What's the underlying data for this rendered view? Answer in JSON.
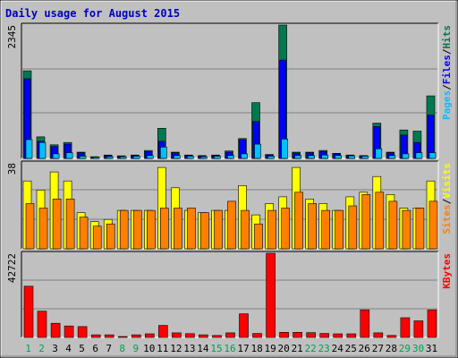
{
  "title": "Daily usage for August 2015",
  "colors": {
    "frame_bg": "#c0c0c0",
    "plot_bg": "#c0c0c0",
    "title": "#0000c0",
    "hits": "#007850",
    "files": "#0000ff",
    "pages": "#00c0ff",
    "visits": "#ffff00",
    "sites": "#ff8000",
    "kbytes": "#ff0000",
    "day_normal": "#000000",
    "day_weekend": "#00a050"
  },
  "chart_data": [
    {
      "type": "bar",
      "panel": "hits-files-pages",
      "ymax_label": "2345",
      "ymax": 2345,
      "legend": [
        "Pages",
        "/",
        "Files",
        "/",
        "Hits"
      ],
      "categories": [
        "1",
        "2",
        "3",
        "4",
        "5",
        "6",
        "7",
        "8",
        "9",
        "10",
        "11",
        "12",
        "13",
        "14",
        "15",
        "16",
        "17",
        "18",
        "19",
        "20",
        "21",
        "22",
        "23",
        "24",
        "25",
        "26",
        "27",
        "28",
        "29",
        "30",
        "31"
      ],
      "weekend_days": [
        "1",
        "2",
        "8",
        "9",
        "15",
        "16",
        "22",
        "23",
        "29",
        "30"
      ],
      "series": [
        {
          "name": "Hits",
          "values": [
            1540,
            380,
            240,
            280,
            110,
            30,
            60,
            45,
            60,
            140,
            530,
            110,
            60,
            50,
            60,
            130,
            350,
            980,
            70,
            2345,
            110,
            110,
            140,
            90,
            60,
            50,
            620,
            110,
            500,
            480,
            1100
          ]
        },
        {
          "name": "Files",
          "values": [
            1400,
            300,
            210,
            250,
            100,
            25,
            50,
            40,
            50,
            120,
            300,
            100,
            50,
            45,
            50,
            110,
            330,
            650,
            60,
            1730,
            95,
            100,
            120,
            80,
            55,
            45,
            560,
            100,
            410,
            280,
            760
          ]
        },
        {
          "name": "Pages",
          "values": [
            330,
            280,
            80,
            100,
            40,
            20,
            30,
            30,
            40,
            50,
            200,
            50,
            40,
            30,
            40,
            50,
            80,
            250,
            40,
            340,
            50,
            50,
            60,
            50,
            45,
            40,
            170,
            50,
            80,
            100,
            100
          ]
        }
      ]
    },
    {
      "type": "bar",
      "panel": "visits-sites",
      "ymax_label": "38",
      "ymax": 38,
      "legend": [
        "Sites",
        "/",
        "Visits"
      ],
      "categories": [
        "1",
        "2",
        "3",
        "4",
        "5",
        "6",
        "7",
        "8",
        "9",
        "10",
        "11",
        "12",
        "13",
        "14",
        "15",
        "16",
        "17",
        "18",
        "19",
        "20",
        "21",
        "22",
        "23",
        "24",
        "25",
        "26",
        "27",
        "28",
        "29",
        "30",
        "31"
      ],
      "series": [
        {
          "name": "Visits",
          "values": [
            30,
            26,
            34,
            30,
            16,
            12,
            13,
            17,
            17,
            17,
            36,
            27,
            17,
            16,
            17,
            17,
            28,
            15,
            20,
            23,
            36,
            22,
            20,
            17,
            23,
            25,
            32,
            24,
            18,
            18,
            30
          ]
        },
        {
          "name": "Sites",
          "values": [
            20,
            18,
            22,
            22,
            14,
            10,
            11,
            17,
            17,
            17,
            18,
            18,
            18,
            16,
            17,
            21,
            17,
            11,
            17,
            18,
            25,
            20,
            17,
            17,
            19,
            24,
            25,
            21,
            17,
            18,
            21
          ]
        }
      ]
    },
    {
      "type": "bar",
      "panel": "kbytes",
      "ymax_label": "42722",
      "ymax": 42722,
      "legend": [
        "KBytes"
      ],
      "categories": [
        "1",
        "2",
        "3",
        "4",
        "5",
        "6",
        "7",
        "8",
        "9",
        "10",
        "11",
        "12",
        "13",
        "14",
        "15",
        "16",
        "17",
        "18",
        "19",
        "20",
        "21",
        "22",
        "23",
        "24",
        "25",
        "26",
        "27",
        "28",
        "29",
        "30",
        "31"
      ],
      "series": [
        {
          "name": "KBytes",
          "values": [
            26000,
            13300,
            7200,
            5800,
            5500,
            1300,
            1300,
            400,
            1300,
            1800,
            6100,
            2300,
            1900,
            1300,
            1000,
            2300,
            12000,
            2000,
            42722,
            2600,
            2600,
            2400,
            2000,
            1800,
            1800,
            14000,
            2300,
            1000,
            10000,
            8400,
            14000
          ]
        }
      ]
    }
  ]
}
